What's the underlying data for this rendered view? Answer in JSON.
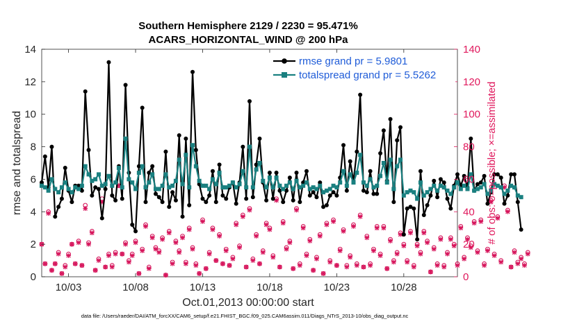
{
  "chart_data": {
    "type": "line",
    "title_line1": "Southern Hemisphere 2129 / 2230 = 95.471%",
    "title_line2": "ACARS_HORIZONTAL_WIND @ 200 hPa",
    "xlabel": "Oct.01,2013 00:00:00 start",
    "ylabel_left": "rmse and totalspread",
    "ylabel_right": "# of obs: o=possible; ×=assimilated",
    "footnote": "data file: /Users/raeder/DAI/ATM_forcXX/CAM6_setup/f.e21.FHIST_BGC.f09_025.CAM6assim.011/Diags_NTrS_2013-10/obs_diag_output.nc",
    "xlim": [
      1.0,
      32.0
    ],
    "ylim_left": [
      0,
      14
    ],
    "ylim_right": [
      0,
      140
    ],
    "x_ticks": [
      3,
      8,
      13,
      18,
      23,
      28
    ],
    "x_tick_labels": [
      "10/03",
      "10/08",
      "10/13",
      "10/18",
      "10/23",
      "10/28"
    ],
    "y_left_ticks": [
      0,
      2,
      4,
      6,
      8,
      10,
      12,
      14
    ],
    "y_right_ticks": [
      0,
      20,
      40,
      60,
      80,
      100,
      120,
      140
    ],
    "x_start": 1.0,
    "x_step": 0.25,
    "series": [
      {
        "name": "rmse grand pr = 5.9801",
        "color": "#000000",
        "marker": "dot",
        "values": [
          5.8,
          7.4,
          5.5,
          8.0,
          3.7,
          4.3,
          4.8,
          6.7,
          5.3,
          4.6,
          5.6,
          5.6,
          5.3,
          11.4,
          7.8,
          5.0,
          5.5,
          5.4,
          3.6,
          5.4,
          13.2,
          5.0,
          4.7,
          6.8,
          4.8,
          11.8,
          6.4,
          3.2,
          2.8,
          6.8,
          10.4,
          4.6,
          6.4,
          6.8,
          5.1,
          4.9,
          4.6,
          7.7,
          4.3,
          5.2,
          4.7,
          8.7,
          3.7,
          8.5,
          4.4,
          12.6,
          7.8,
          5.7,
          4.8,
          4.6,
          5.0,
          6.5,
          4.6,
          6.9,
          5.0,
          4.8,
          5.5,
          5.8,
          4.5,
          5.8,
          8.0,
          4.8,
          10.8,
          4.9,
          6.9,
          8.5,
          5.8,
          4.7,
          6.4,
          4.8,
          6.4,
          5.3,
          4.6,
          5.3,
          6.1,
          4.7,
          6.4,
          4.6,
          5.8,
          6.5,
          5.0,
          5.2,
          4.9,
          5.8,
          4.3,
          4.4,
          5.0,
          5.2,
          5.0,
          6.1,
          8.1,
          5.3,
          7.1,
          5.9,
          7.7,
          11.2,
          5.3,
          5.2,
          6.5,
          5.1,
          5.1,
          7.6,
          9.0,
          5.9,
          9.7,
          4.6,
          8.4,
          9.2,
          2.6,
          4.2,
          4.3,
          4.2,
          2.3,
          6.5,
          3.8,
          4.4,
          5.0,
          5.9,
          4.9,
          6.0,
          5.8,
          4.8,
          4.2,
          5.6,
          6.3,
          5.6,
          6.2,
          5.5,
          8.5,
          5.3,
          5.7,
          5.8,
          6.2,
          4.5,
          5.2,
          6.3,
          6.3,
          6.1,
          4.5,
          5.0,
          6.3,
          6.3,
          4.6,
          2.9
        ]
      },
      {
        "name": "totalspread grand pr = 5.5262",
        "color": "#1a8080",
        "marker": "square",
        "values": [
          5.6,
          5.5,
          5.3,
          6.0,
          5.4,
          5.2,
          5.5,
          5.8,
          5.4,
          5.2,
          5.5,
          5.4,
          5.6,
          6.8,
          6.3,
          5.9,
          6.0,
          6.3,
          5.6,
          5.7,
          6.2,
          5.6,
          5.8,
          6.7,
          5.5,
          8.5,
          6.0,
          5.8,
          5.4,
          6.4,
          6.8,
          5.5,
          5.8,
          6.3,
          5.4,
          5.4,
          5.6,
          6.3,
          5.5,
          5.6,
          5.9,
          7.2,
          5.7,
          7.5,
          5.5,
          8.1,
          6.8,
          5.9,
          5.6,
          5.6,
          5.4,
          6.0,
          5.7,
          6.4,
          5.5,
          5.5,
          5.6,
          5.8,
          5.5,
          5.7,
          6.5,
          5.5,
          8.0,
          5.5,
          6.6,
          7.0,
          5.9,
          5.5,
          6.1,
          5.5,
          6.1,
          5.6,
          5.4,
          5.6,
          5.8,
          5.4,
          5.9,
          5.5,
          5.6,
          5.8,
          5.4,
          5.5,
          5.4,
          5.6,
          5.2,
          5.3,
          5.4,
          5.6,
          5.5,
          5.8,
          6.5,
          5.6,
          6.3,
          5.8,
          6.4,
          7.5,
          5.8,
          5.6,
          6.0,
          5.5,
          5.6,
          6.2,
          7.0,
          5.8,
          7.2,
          5.4,
          6.8,
          7.2,
          5.0,
          5.2,
          5.3,
          5.2,
          4.8,
          5.8,
          5.0,
          5.2,
          5.4,
          5.6,
          5.3,
          5.6,
          5.5,
          5.3,
          5.1,
          5.5,
          5.8,
          5.4,
          5.6,
          5.4,
          6.3,
          5.3,
          5.4,
          5.5,
          5.7,
          5.1,
          5.3,
          5.7,
          5.6,
          5.5,
          5.1,
          5.3,
          5.6,
          5.5,
          5.0,
          4.9
        ]
      }
    ],
    "obs_series": [
      {
        "name": "possible",
        "marker": "o",
        "color": "#d6135a",
        "values": [
          20,
          8,
          40,
          4,
          8,
          15,
          2,
          7,
          14,
          20,
          8,
          22,
          7,
          44,
          21,
          28,
          4,
          11,
          48,
          6,
          14,
          7,
          15,
          56,
          14,
          21,
          10,
          14,
          22,
          2,
          17,
          32,
          6,
          25,
          18,
          16,
          24,
          1,
          28,
          9,
          22,
          16,
          25,
          9,
          30,
          18,
          8,
          2,
          35,
          5,
          15,
          30,
          10,
          26,
          8,
          17,
          7,
          12,
          33,
          19,
          38,
          6,
          42,
          11,
          26,
          8,
          16,
          33,
          30,
          13,
          48,
          6,
          34,
          18,
          22,
          5,
          42,
          8,
          31,
          14,
          23,
          4,
          12,
          26,
          2,
          33,
          10,
          35,
          7,
          17,
          29,
          7,
          13,
          32,
          8,
          38,
          6,
          25,
          8,
          17,
          31,
          14,
          31,
          5,
          23,
          10,
          15,
          27,
          20,
          10,
          28,
          7,
          20,
          15,
          28,
          22,
          3,
          18,
          8,
          24,
          7,
          15,
          24,
          20,
          8,
          31,
          12,
          24,
          19,
          34,
          16,
          35,
          8,
          17,
          47,
          14,
          37,
          10,
          56,
          41,
          6,
          16,
          9,
          12,
          8,
          15
        ]
      },
      {
        "name": "assimilated",
        "marker": "x",
        "color": "#d6135a",
        "values": [
          20,
          8,
          39,
          4,
          8,
          14,
          2,
          6,
          13,
          20,
          8,
          21,
          7,
          42,
          20,
          27,
          4,
          10,
          46,
          6,
          13,
          6,
          14,
          56,
          14,
          20,
          9,
          13,
          21,
          2,
          16,
          31,
          5,
          24,
          17,
          15,
          23,
          1,
          27,
          8,
          21,
          15,
          24,
          8,
          29,
          17,
          7,
          2,
          34,
          5,
          14,
          29,
          10,
          25,
          8,
          16,
          7,
          11,
          32,
          18,
          37,
          6,
          41,
          10,
          25,
          8,
          15,
          32,
          29,
          12,
          47,
          6,
          33,
          17,
          21,
          5,
          41,
          7,
          30,
          13,
          22,
          4,
          11,
          25,
          2,
          32,
          9,
          34,
          7,
          16,
          28,
          6,
          12,
          31,
          7,
          37,
          6,
          24,
          7,
          16,
          30,
          13,
          30,
          5,
          22,
          9,
          14,
          26,
          19,
          9,
          27,
          6,
          19,
          14,
          27,
          21,
          3,
          17,
          7,
          23,
          6,
          14,
          23,
          19,
          7,
          30,
          11,
          23,
          18,
          33,
          15,
          34,
          7,
          16,
          46,
          13,
          36,
          9,
          55,
          40,
          6,
          15,
          8,
          11,
          7,
          14
        ]
      }
    ]
  }
}
